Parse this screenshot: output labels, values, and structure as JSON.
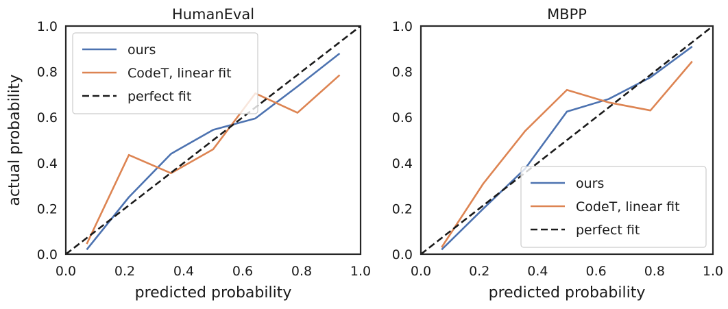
{
  "chart_data": [
    {
      "type": "line",
      "title": "HumanEval",
      "xlabel": "predicted probability",
      "ylabel": "actual probability",
      "xlim": [
        0.0,
        1.0
      ],
      "ylim": [
        0.0,
        1.0
      ],
      "xticks": [
        "0.0",
        "0.2",
        "0.4",
        "0.6",
        "0.8",
        "1.0"
      ],
      "yticks": [
        "0.0",
        "0.2",
        "0.4",
        "0.6",
        "0.8",
        "1.0"
      ],
      "grid": false,
      "legend_placement": "top-left",
      "series": [
        {
          "name": "ours",
          "color": "#4c72b0",
          "style": "solid",
          "x": [
            0.071,
            0.214,
            0.357,
            0.5,
            0.643,
            0.786,
            0.929
          ],
          "y": [
            0.02,
            0.25,
            0.44,
            0.545,
            0.595,
            0.735,
            0.88
          ]
        },
        {
          "name": "CodeT, linear fit",
          "color": "#dd8452",
          "style": "solid",
          "x": [
            0.071,
            0.214,
            0.357,
            0.5,
            0.643,
            0.786,
            0.929
          ],
          "y": [
            0.045,
            0.435,
            0.355,
            0.46,
            0.705,
            0.62,
            0.785
          ]
        },
        {
          "name": "perfect fit",
          "color": "#1a1a1a",
          "style": "dashed",
          "x": [
            0.0,
            1.0
          ],
          "y": [
            0.0,
            1.0
          ]
        }
      ]
    },
    {
      "type": "line",
      "title": "MBPP",
      "xlabel": "predicted probability",
      "ylabel": "",
      "xlim": [
        0.0,
        1.0
      ],
      "ylim": [
        0.0,
        1.0
      ],
      "xticks": [
        "0.0",
        "0.2",
        "0.4",
        "0.6",
        "0.8",
        "1.0"
      ],
      "yticks": [
        "0.0",
        "0.2",
        "0.4",
        "0.6",
        "0.8",
        "1.0"
      ],
      "grid": false,
      "legend_placement": "bottom-right",
      "series": [
        {
          "name": "ours",
          "color": "#4c72b0",
          "style": "solid",
          "x": [
            0.071,
            0.214,
            0.357,
            0.5,
            0.643,
            0.786,
            0.929
          ],
          "y": [
            0.02,
            0.2,
            0.375,
            0.625,
            0.68,
            0.775,
            0.91
          ]
        },
        {
          "name": "CodeT, linear fit",
          "color": "#dd8452",
          "style": "solid",
          "x": [
            0.071,
            0.214,
            0.357,
            0.5,
            0.643,
            0.786,
            0.929
          ],
          "y": [
            0.03,
            0.31,
            0.54,
            0.72,
            0.665,
            0.63,
            0.845
          ]
        },
        {
          "name": "perfect fit",
          "color": "#1a1a1a",
          "style": "dashed",
          "x": [
            0.0,
            1.0
          ],
          "y": [
            0.0,
            1.0
          ]
        }
      ]
    }
  ]
}
